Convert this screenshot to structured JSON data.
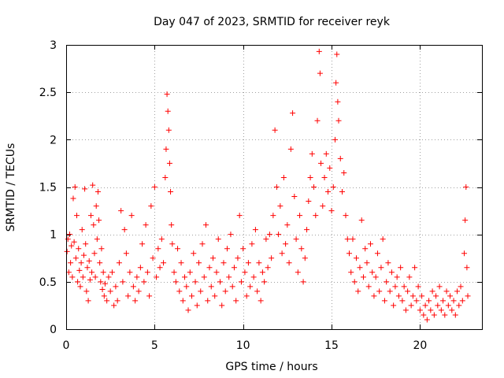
{
  "chart_data": {
    "type": "scatter",
    "title": "Day 047 of 2023, SRMTID for receiver reyk",
    "xlabel": "GPS time / hours",
    "ylabel": "SRMTID / TECUs",
    "xlim": [
      0,
      23.5
    ],
    "ylim": [
      0,
      3
    ],
    "xticks": [
      0,
      5,
      10,
      15,
      20
    ],
    "yticks": [
      0,
      0.5,
      1,
      1.5,
      2,
      2.5,
      3
    ],
    "xtick_labels": [
      "0",
      "5",
      "10",
      "15",
      "20"
    ],
    "ytick_labels": [
      "0",
      "0.5",
      "1",
      "1.5",
      "2",
      "2.5",
      "3"
    ],
    "grid": true,
    "marker": "+",
    "color": "#ff0000",
    "series": [
      {
        "name": "SRMTID",
        "points": [
          [
            0.05,
            0.82
          ],
          [
            0.1,
            0.95
          ],
          [
            0.15,
            0.6
          ],
          [
            0.2,
            1.0
          ],
          [
            0.25,
            0.7
          ],
          [
            0.3,
            0.88
          ],
          [
            0.35,
            0.55
          ],
          [
            0.4,
            1.38
          ],
          [
            0.45,
            0.92
          ],
          [
            0.5,
            1.5
          ],
          [
            0.55,
            0.75
          ],
          [
            0.6,
            1.2
          ],
          [
            0.65,
            0.5
          ],
          [
            0.7,
            0.85
          ],
          [
            0.75,
            0.62
          ],
          [
            0.8,
            0.45
          ],
          [
            0.85,
            0.7
          ],
          [
            0.9,
            1.05
          ],
          [
            0.95,
            0.55
          ],
          [
            1.0,
            0.78
          ],
          [
            1.05,
            1.48
          ],
          [
            1.1,
            0.9
          ],
          [
            1.15,
            0.4
          ],
          [
            1.2,
            0.65
          ],
          [
            1.25,
            0.3
          ],
          [
            1.3,
            0.72
          ],
          [
            1.35,
            0.52
          ],
          [
            1.4,
            1.2
          ],
          [
            1.45,
            0.6
          ],
          [
            1.5,
            1.52
          ],
          [
            1.55,
            1.1
          ],
          [
            1.6,
            0.8
          ],
          [
            1.65,
            0.55
          ],
          [
            1.7,
            1.3
          ],
          [
            1.75,
            0.95
          ],
          [
            1.8,
            1.45
          ],
          [
            1.85,
            1.15
          ],
          [
            1.9,
            0.7
          ],
          [
            1.95,
            0.5
          ],
          [
            2.0,
            0.85
          ],
          [
            2.05,
            0.42
          ],
          [
            2.1,
            0.6
          ],
          [
            2.15,
            0.35
          ],
          [
            2.2,
            0.48
          ],
          [
            2.3,
            0.3
          ],
          [
            2.4,
            0.55
          ],
          [
            2.5,
            0.4
          ],
          [
            2.6,
            0.6
          ],
          [
            2.7,
            0.25
          ],
          [
            2.8,
            0.45
          ],
          [
            2.9,
            0.3
          ],
          [
            3.0,
            0.7
          ],
          [
            3.1,
            1.25
          ],
          [
            3.2,
            0.5
          ],
          [
            3.3,
            1.05
          ],
          [
            3.4,
            0.8
          ],
          [
            3.5,
            0.35
          ],
          [
            3.6,
            0.6
          ],
          [
            3.7,
            1.2
          ],
          [
            3.8,
            0.45
          ],
          [
            3.9,
            0.3
          ],
          [
            4.0,
            0.55
          ],
          [
            4.1,
            0.4
          ],
          [
            4.2,
            0.65
          ],
          [
            4.3,
            0.9
          ],
          [
            4.4,
            0.5
          ],
          [
            4.5,
            1.1
          ],
          [
            4.6,
            0.6
          ],
          [
            4.7,
            0.35
          ],
          [
            4.8,
            1.3
          ],
          [
            4.9,
            0.75
          ],
          [
            5.0,
            1.5
          ],
          [
            5.1,
            0.55
          ],
          [
            5.2,
            0.85
          ],
          [
            5.3,
            0.65
          ],
          [
            5.4,
            0.95
          ],
          [
            5.5,
            0.7
          ],
          [
            5.6,
            1.6
          ],
          [
            5.65,
            1.9
          ],
          [
            5.7,
            2.48
          ],
          [
            5.75,
            2.3
          ],
          [
            5.8,
            2.1
          ],
          [
            5.85,
            1.75
          ],
          [
            5.9,
            1.45
          ],
          [
            5.95,
            1.1
          ],
          [
            6.0,
            0.9
          ],
          [
            6.1,
            0.6
          ],
          [
            6.2,
            0.5
          ],
          [
            6.3,
            0.85
          ],
          [
            6.4,
            0.4
          ],
          [
            6.5,
            0.7
          ],
          [
            6.6,
            0.3
          ],
          [
            6.7,
            0.55
          ],
          [
            6.8,
            0.45
          ],
          [
            6.9,
            0.2
          ],
          [
            7.0,
            0.6
          ],
          [
            7.1,
            0.35
          ],
          [
            7.2,
            0.8
          ],
          [
            7.3,
            0.5
          ],
          [
            7.4,
            0.25
          ],
          [
            7.5,
            0.7
          ],
          [
            7.6,
            0.4
          ],
          [
            7.7,
            0.9
          ],
          [
            7.8,
            0.55
          ],
          [
            7.9,
            1.1
          ],
          [
            8.0,
            0.3
          ],
          [
            8.1,
            0.65
          ],
          [
            8.2,
            0.45
          ],
          [
            8.3,
            0.75
          ],
          [
            8.4,
            0.35
          ],
          [
            8.5,
            0.6
          ],
          [
            8.6,
            0.95
          ],
          [
            8.7,
            0.5
          ],
          [
            8.8,
            0.25
          ],
          [
            8.9,
            0.7
          ],
          [
            9.0,
            0.4
          ],
          [
            9.1,
            0.85
          ],
          [
            9.2,
            0.55
          ],
          [
            9.3,
            1.0
          ],
          [
            9.4,
            0.45
          ],
          [
            9.5,
            0.65
          ],
          [
            9.6,
            0.3
          ],
          [
            9.7,
            0.75
          ],
          [
            9.8,
            1.2
          ],
          [
            9.9,
            0.5
          ],
          [
            10.0,
            0.85
          ],
          [
            10.1,
            0.6
          ],
          [
            10.2,
            0.35
          ],
          [
            10.3,
            0.7
          ],
          [
            10.4,
            0.45
          ],
          [
            10.5,
            0.9
          ],
          [
            10.6,
            0.55
          ],
          [
            10.7,
            1.05
          ],
          [
            10.8,
            0.4
          ],
          [
            10.9,
            0.7
          ],
          [
            11.0,
            0.3
          ],
          [
            11.1,
            0.6
          ],
          [
            11.2,
            0.5
          ],
          [
            11.3,
            0.95
          ],
          [
            11.4,
            0.65
          ],
          [
            11.5,
            1.0
          ],
          [
            11.6,
            0.75
          ],
          [
            11.7,
            1.2
          ],
          [
            11.8,
            2.1
          ],
          [
            11.9,
            1.5
          ],
          [
            12.0,
            1.0
          ],
          [
            12.1,
            1.3
          ],
          [
            12.2,
            0.8
          ],
          [
            12.3,
            1.6
          ],
          [
            12.4,
            0.9
          ],
          [
            12.5,
            1.1
          ],
          [
            12.6,
            0.7
          ],
          [
            12.7,
            1.9
          ],
          [
            12.8,
            2.28
          ],
          [
            12.9,
            1.4
          ],
          [
            13.0,
            0.95
          ],
          [
            13.1,
            0.6
          ],
          [
            13.2,
            1.2
          ],
          [
            13.3,
            0.85
          ],
          [
            13.4,
            0.5
          ],
          [
            13.5,
            0.75
          ],
          [
            13.6,
            1.05
          ],
          [
            13.7,
            1.35
          ],
          [
            13.8,
            1.6
          ],
          [
            13.9,
            1.85
          ],
          [
            14.0,
            1.5
          ],
          [
            14.1,
            1.2
          ],
          [
            14.2,
            2.2
          ],
          [
            14.3,
            2.93
          ],
          [
            14.35,
            2.7
          ],
          [
            14.4,
            1.75
          ],
          [
            14.5,
            1.3
          ],
          [
            14.6,
            1.6
          ],
          [
            14.7,
            1.85
          ],
          [
            14.8,
            1.45
          ],
          [
            14.9,
            1.7
          ],
          [
            15.0,
            1.25
          ],
          [
            15.1,
            1.5
          ],
          [
            15.2,
            2.0
          ],
          [
            15.25,
            2.6
          ],
          [
            15.3,
            2.9
          ],
          [
            15.35,
            2.4
          ],
          [
            15.4,
            2.2
          ],
          [
            15.5,
            1.8
          ],
          [
            15.6,
            1.45
          ],
          [
            15.7,
            1.65
          ],
          [
            15.8,
            1.2
          ],
          [
            15.9,
            0.95
          ],
          [
            16.0,
            0.8
          ],
          [
            16.1,
            0.6
          ],
          [
            16.2,
            0.95
          ],
          [
            16.3,
            0.5
          ],
          [
            16.4,
            0.75
          ],
          [
            16.5,
            0.4
          ],
          [
            16.6,
            0.65
          ],
          [
            16.7,
            1.15
          ],
          [
            16.8,
            0.55
          ],
          [
            16.9,
            0.85
          ],
          [
            17.0,
            0.7
          ],
          [
            17.1,
            0.45
          ],
          [
            17.2,
            0.9
          ],
          [
            17.3,
            0.6
          ],
          [
            17.4,
            0.35
          ],
          [
            17.5,
            0.55
          ],
          [
            17.6,
            0.8
          ],
          [
            17.7,
            0.4
          ],
          [
            17.8,
            0.65
          ],
          [
            17.9,
            0.95
          ],
          [
            18.0,
            0.3
          ],
          [
            18.1,
            0.5
          ],
          [
            18.2,
            0.7
          ],
          [
            18.3,
            0.4
          ],
          [
            18.4,
            0.6
          ],
          [
            18.5,
            0.25
          ],
          [
            18.6,
            0.45
          ],
          [
            18.7,
            0.55
          ],
          [
            18.8,
            0.35
          ],
          [
            18.9,
            0.65
          ],
          [
            19.0,
            0.3
          ],
          [
            19.1,
            0.45
          ],
          [
            19.2,
            0.2
          ],
          [
            19.3,
            0.4
          ],
          [
            19.4,
            0.55
          ],
          [
            19.5,
            0.25
          ],
          [
            19.6,
            0.35
          ],
          [
            19.7,
            0.65
          ],
          [
            19.8,
            0.3
          ],
          [
            19.9,
            0.45
          ],
          [
            20.0,
            0.2
          ],
          [
            20.1,
            0.35
          ],
          [
            20.2,
            0.15
          ],
          [
            20.3,
            0.25
          ],
          [
            20.4,
            0.1
          ],
          [
            20.5,
            0.3
          ],
          [
            20.6,
            0.2
          ],
          [
            20.7,
            0.4
          ],
          [
            20.8,
            0.15
          ],
          [
            20.9,
            0.35
          ],
          [
            21.0,
            0.25
          ],
          [
            21.1,
            0.45
          ],
          [
            21.2,
            0.2
          ],
          [
            21.3,
            0.3
          ],
          [
            21.4,
            0.15
          ],
          [
            21.5,
            0.4
          ],
          [
            21.6,
            0.25
          ],
          [
            21.7,
            0.35
          ],
          [
            21.8,
            0.2
          ],
          [
            21.9,
            0.3
          ],
          [
            22.0,
            0.15
          ],
          [
            22.1,
            0.4
          ],
          [
            22.2,
            0.25
          ],
          [
            22.3,
            0.45
          ],
          [
            22.4,
            0.3
          ],
          [
            22.5,
            0.8
          ],
          [
            22.55,
            1.15
          ],
          [
            22.6,
            1.5
          ],
          [
            22.65,
            0.65
          ],
          [
            22.7,
            0.35
          ]
        ]
      }
    ]
  }
}
